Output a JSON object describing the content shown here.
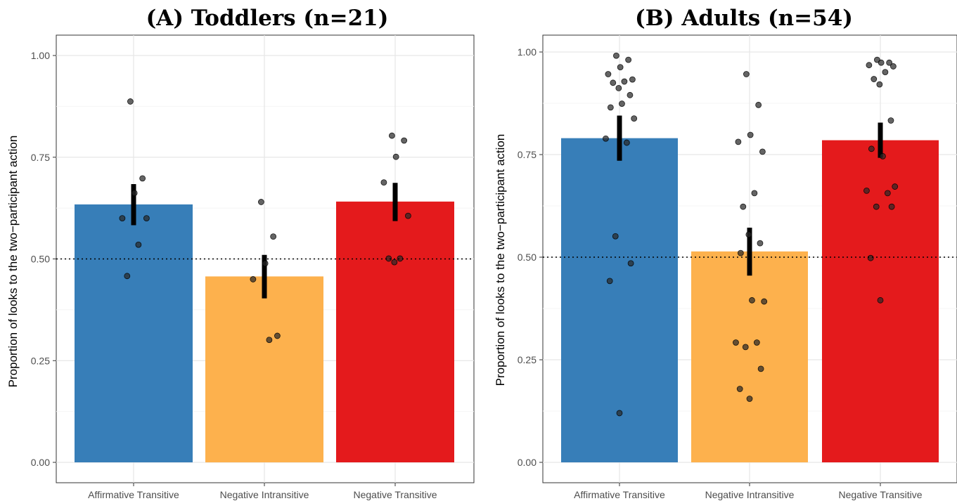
{
  "chart_data": [
    {
      "type": "bar",
      "title": "(A) Toddlers (n=21)",
      "xlabel": "",
      "ylabel": "Proportion of looks to the two−participant action",
      "categories": [
        "Affirmative Transitive",
        "Negative Intransitive",
        "Negative Transitive"
      ],
      "colors": [
        "#377eb8",
        "#fdb14d",
        "#e41a1c"
      ],
      "values": [
        0.634,
        0.457,
        0.641
      ],
      "error_bars": [
        [
          0.583,
          0.684
        ],
        [
          0.403,
          0.51
        ],
        [
          0.593,
          0.687
        ]
      ],
      "ylim": [
        0,
        1.05
      ],
      "yticks": [
        0.0,
        0.25,
        0.5,
        0.75,
        1.0
      ],
      "ytick_labels": [
        "0.00",
        "0.25",
        "0.50",
        "0.75",
        "1.00"
      ],
      "reference_line": 0.5,
      "grid": true,
      "points": [
        [
          0.887,
          0.698,
          0.662,
          0.6,
          0.6,
          0.535,
          0.458
        ],
        [
          0.64,
          0.555,
          0.489,
          0.45,
          0.311,
          0.301
        ],
        [
          0.803,
          0.791,
          0.751,
          0.688,
          0.606,
          0.501,
          0.501,
          0.492
        ]
      ]
    },
    {
      "type": "bar",
      "title": "(B) Adults (n=54)",
      "xlabel": "",
      "ylabel": "Proportion of looks to the two−participant action",
      "categories": [
        "Affirmative Transitive",
        "Negative Intransitive",
        "Negative Transitive"
      ],
      "colors": [
        "#377eb8",
        "#fdb14d",
        "#e41a1c"
      ],
      "values": [
        0.79,
        0.514,
        0.785
      ],
      "error_bars": [
        [
          0.735,
          0.845
        ],
        [
          0.455,
          0.572
        ],
        [
          0.742,
          0.828
        ]
      ],
      "ylim": [
        0,
        1.02
      ],
      "yticks": [
        0.0,
        0.25,
        0.5,
        0.75,
        1.0
      ],
      "ytick_labels": [
        "0.00",
        "0.25",
        "0.50",
        "0.75",
        "1.00"
      ],
      "reference_line": 0.5,
      "grid": true,
      "points": [
        [
          0.991,
          0.981,
          0.963,
          0.946,
          0.933,
          0.928,
          0.925,
          0.912,
          0.895,
          0.865,
          0.874,
          0.838,
          0.789,
          0.779,
          0.551,
          0.485,
          0.442,
          0.12
        ],
        [
          0.946,
          0.871,
          0.798,
          0.781,
          0.757,
          0.656,
          0.623,
          0.555,
          0.534,
          0.51,
          0.395,
          0.392,
          0.292,
          0.292,
          0.281,
          0.228,
          0.179,
          0.155
        ],
        [
          0.981,
          0.974,
          0.974,
          0.968,
          0.965,
          0.951,
          0.934,
          0.921,
          0.833,
          0.764,
          0.746,
          0.672,
          0.662,
          0.656,
          0.623,
          0.623,
          0.498,
          0.395
        ]
      ]
    }
  ]
}
